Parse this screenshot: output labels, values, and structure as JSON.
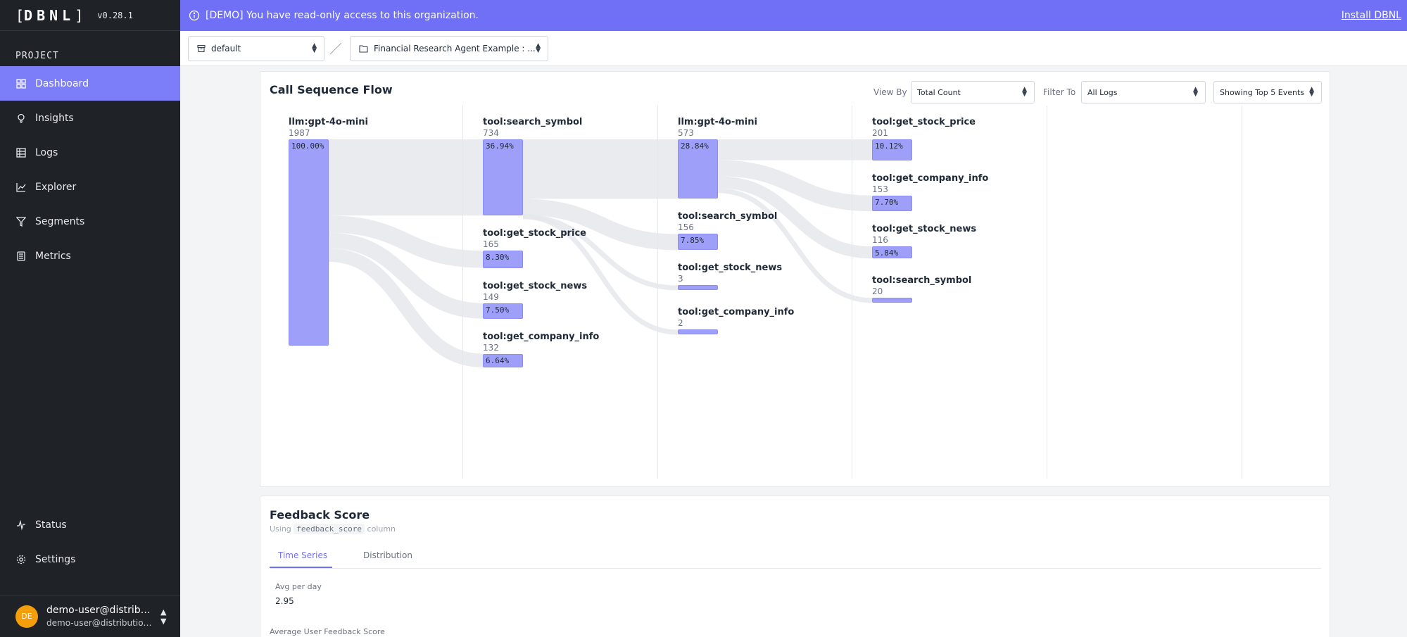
{
  "sidebar": {
    "logo": "DBNL",
    "version": "v0.28.1",
    "section_label": "PROJECT",
    "items": [
      {
        "label": "Dashboard",
        "icon": "dashboard-icon"
      },
      {
        "label": "Insights",
        "icon": "lightbulb-icon"
      },
      {
        "label": "Logs",
        "icon": "table-icon"
      },
      {
        "label": "Explorer",
        "icon": "line-chart-icon"
      },
      {
        "label": "Segments",
        "icon": "filter-icon"
      },
      {
        "label": "Metrics",
        "icon": "calculator-icon"
      }
    ],
    "bottom_items": [
      {
        "label": "Status",
        "icon": "activity-icon"
      },
      {
        "label": "Settings",
        "icon": "gear-icon"
      }
    ],
    "user": {
      "initials": "DE",
      "name": "demo-user@distribu...",
      "email": "demo-user@distributiona..."
    }
  },
  "banner": {
    "message": "[DEMO] You have read-only access to this organization.",
    "install_link": "Install DBNL"
  },
  "topbar": {
    "namespace_select": "default",
    "project_select": "Financial Research Agent Example : ..."
  },
  "flow_card": {
    "title": "Call Sequence Flow",
    "view_by_label": "View By",
    "view_by_value": "Total Count",
    "filter_to_label": "Filter To",
    "filter_to_value": "All Logs",
    "top_events_value": "Showing Top 5 Events"
  },
  "flow": {
    "columns": [
      [
        {
          "label": "llm:gpt-4o-mini",
          "count": "1987",
          "pct": "100.00%",
          "value": 1987
        }
      ],
      [
        {
          "label": "tool:search_symbol",
          "count": "734",
          "pct": "36.94%",
          "value": 734
        },
        {
          "label": "tool:get_stock_price",
          "count": "165",
          "pct": "8.30%",
          "value": 165
        },
        {
          "label": "tool:get_stock_news",
          "count": "149",
          "pct": "7.50%",
          "value": 149
        },
        {
          "label": "tool:get_company_info",
          "count": "132",
          "pct": "6.64%",
          "value": 132
        }
      ],
      [
        {
          "label": "llm:gpt-4o-mini",
          "count": "573",
          "pct": "28.84%",
          "value": 573
        },
        {
          "label": "tool:search_symbol",
          "count": "156",
          "pct": "7.85%",
          "value": 156
        },
        {
          "label": "tool:get_stock_news",
          "count": "3",
          "pct": "",
          "value": 3
        },
        {
          "label": "tool:get_company_info",
          "count": "2",
          "pct": "",
          "value": 2
        }
      ],
      [
        {
          "label": "tool:get_stock_price",
          "count": "201",
          "pct": "10.12%",
          "value": 201
        },
        {
          "label": "tool:get_company_info",
          "count": "153",
          "pct": "7.70%",
          "value": 153
        },
        {
          "label": "tool:get_stock_news",
          "count": "116",
          "pct": "5.84%",
          "value": 116
        },
        {
          "label": "tool:search_symbol",
          "count": "20",
          "pct": "",
          "value": 20
        }
      ]
    ]
  },
  "feedback_card": {
    "title": "Feedback Score",
    "using_prefix": "Using",
    "column_name": "feedback_score",
    "using_suffix": "column",
    "tabs": [
      "Time Series",
      "Distribution"
    ],
    "avg_label": "Avg per day",
    "avg_value": "2.95",
    "chart_title": "Average User Feedback Score"
  },
  "colors": {
    "accent": "#7c7df8",
    "banner": "#6f70f5",
    "sidebar_bg": "#1f2328",
    "node": "#9e9ff8",
    "link": "#e5e7eb"
  }
}
